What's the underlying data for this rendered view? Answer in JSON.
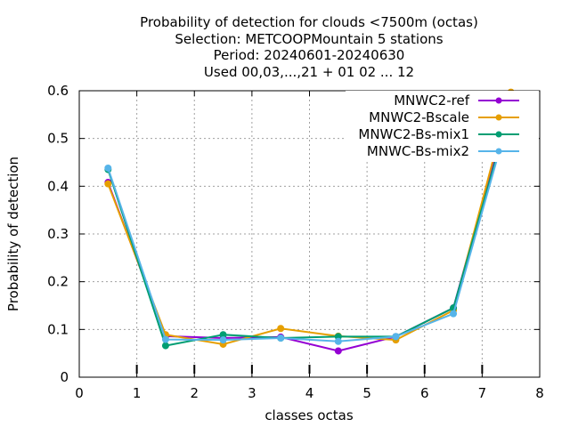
{
  "chart_data": {
    "type": "line",
    "title": [
      "Probability of detection  for clouds <7500m (octas)",
      "Selection: METCOOPMountain      5 stations",
      "Period: 20240601-20240630",
      "Used 00,03,...,21 + 01 02 ... 12"
    ],
    "xlabel": "classes octas",
    "ylabel": "Probability of detection",
    "xlim": [
      0,
      8
    ],
    "ylim": [
      0,
      0.6
    ],
    "xticks": [
      "0",
      "1",
      "2",
      "3",
      "4",
      "5",
      "6",
      "7",
      "8"
    ],
    "yticks": [
      "0",
      "0.1",
      "0.2",
      "0.3",
      "0.4",
      "0.5",
      "0.6"
    ],
    "grid": true,
    "legend_position": "top-right",
    "x": [
      0.5,
      1.5,
      2.5,
      3.5,
      4.5,
      5.5,
      6.5,
      7.5
    ],
    "series": [
      {
        "name": "MNWC2-ref",
        "color": "#9400d3",
        "values": [
          0.408,
          0.086,
          0.082,
          0.084,
          0.055,
          0.085,
          0.145,
          0.58
        ]
      },
      {
        "name": "MNWC2-Bscale",
        "color": "#e69f00",
        "values": [
          0.405,
          0.089,
          0.069,
          0.102,
          0.086,
          0.078,
          0.14,
          0.597
        ]
      },
      {
        "name": "MNWC2-Bs-mix1",
        "color": "#009e73",
        "values": [
          0.435,
          0.066,
          0.089,
          0.082,
          0.085,
          0.085,
          0.145,
          0.567
        ]
      },
      {
        "name": "MNWC-Bs-mix2",
        "color": "#56b4e9",
        "values": [
          0.438,
          0.079,
          0.078,
          0.082,
          0.075,
          0.085,
          0.133,
          0.56
        ]
      }
    ]
  }
}
